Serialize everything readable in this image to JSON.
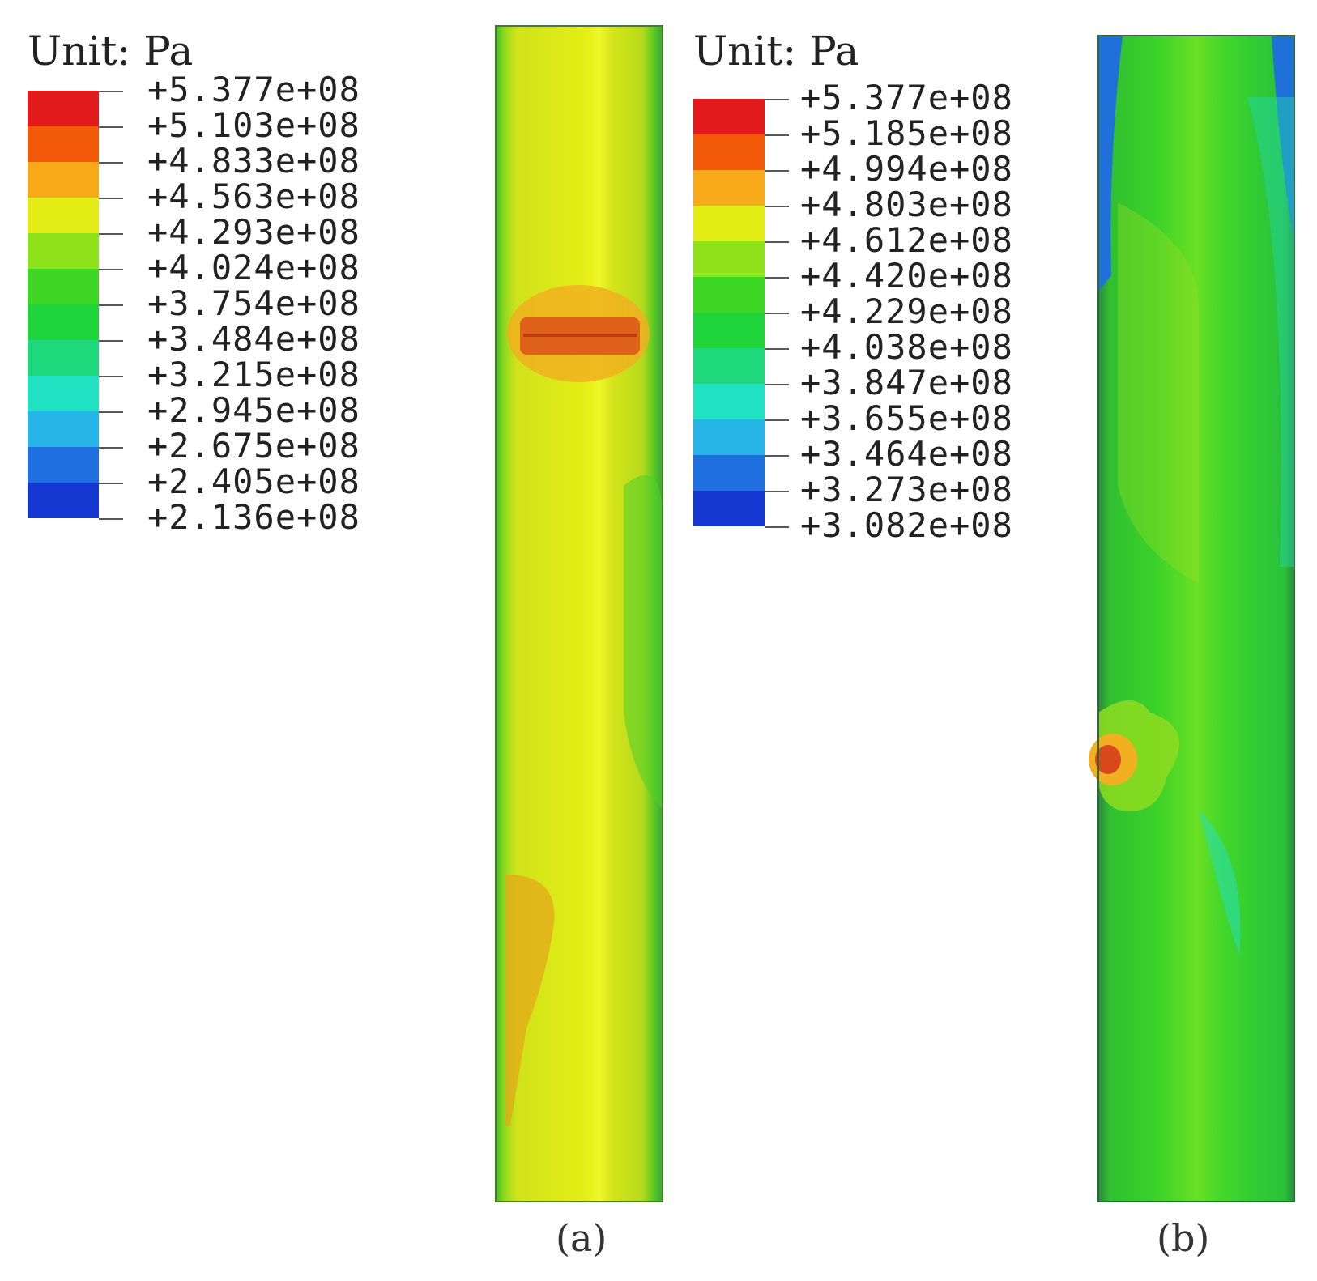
{
  "panels": [
    {
      "unit_label": "Unit: Pa",
      "legend_values": [
        "+5.377e+08",
        "+5.103e+08",
        "+4.833e+08",
        "+4.563e+08",
        "+4.293e+08",
        "+4.024e+08",
        "+3.754e+08",
        "+3.484e+08",
        "+3.215e+08",
        "+2.945e+08",
        "+2.675e+08",
        "+2.405e+08",
        "+2.136e+08"
      ],
      "caption": "(a)"
    },
    {
      "unit_label": "Unit: Pa",
      "legend_values": [
        "+5.377e+08",
        "+5.185e+08",
        "+4.994e+08",
        "+4.803e+08",
        "+4.612e+08",
        "+4.420e+08",
        "+4.229e+08",
        "+4.038e+08",
        "+3.847e+08",
        "+3.655e+08",
        "+3.464e+08",
        "+3.273e+08",
        "+3.082e+08"
      ],
      "caption": "(b)"
    }
  ],
  "colors": {
    "contour_bands": [
      "#e31a1c",
      "#f25a0a",
      "#f7a91a",
      "#e4ec16",
      "#8fe21c",
      "#3ed625",
      "#20d53c",
      "#1fd87c",
      "#21e2c3",
      "#27b4e6",
      "#1f6fe0",
      "#1638d2",
      "#0d12a8"
    ]
  }
}
